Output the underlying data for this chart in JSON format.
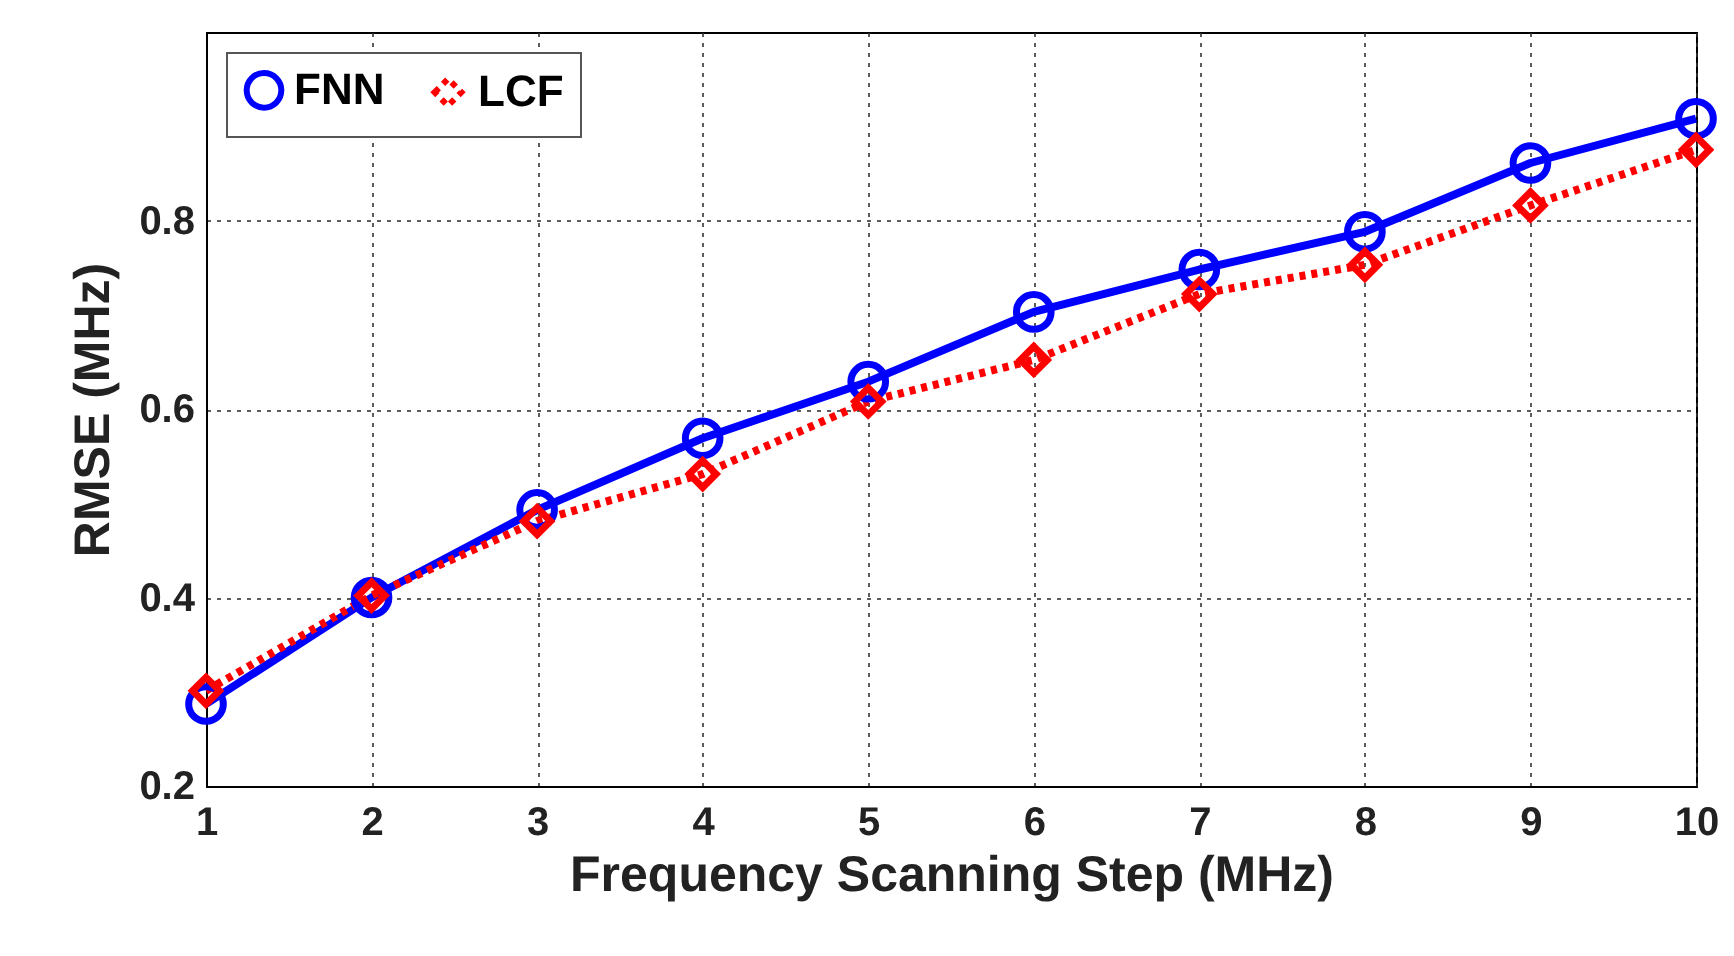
{
  "chart_data": {
    "type": "line",
    "xlabel": "Frequency Scanning Step (MHz)",
    "ylabel": "RMSE (MHz)",
    "x": [
      1,
      2,
      3,
      4,
      5,
      6,
      7,
      8,
      9,
      10
    ],
    "series": [
      {
        "name": "FNN",
        "color": "#0000ff",
        "marker": "circle",
        "line_style": "solid",
        "values": [
          0.287,
          0.4,
          0.493,
          0.569,
          0.629,
          0.703,
          0.748,
          0.788,
          0.861,
          0.908
        ]
      },
      {
        "name": "LCF",
        "color": "#ff0000",
        "marker": "diamond",
        "line_style": "dotted",
        "values": [
          0.301,
          0.402,
          0.481,
          0.531,
          0.608,
          0.652,
          0.722,
          0.753,
          0.816,
          0.875
        ]
      }
    ],
    "xlim": [
      1,
      10
    ],
    "xticks": [
      1,
      2,
      3,
      4,
      5,
      6,
      7,
      8,
      9,
      10
    ],
    "ylim": [
      0.2,
      1.0
    ],
    "yticks": [
      0.2,
      0.4,
      0.6,
      0.8
    ],
    "grid": true,
    "legend": "top left"
  }
}
